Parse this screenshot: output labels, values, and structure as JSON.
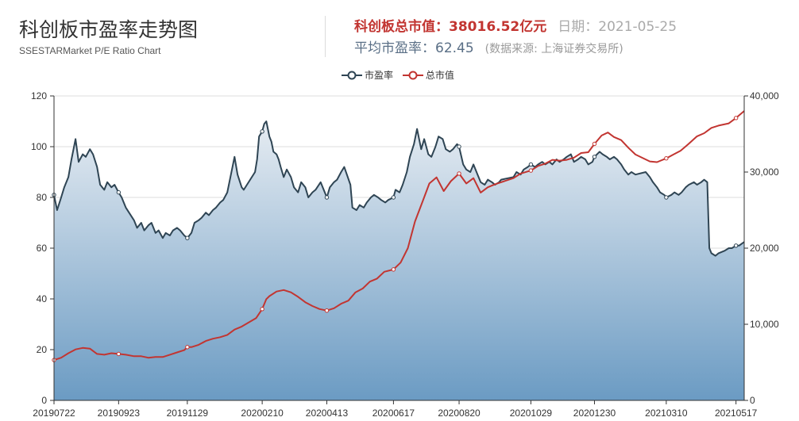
{
  "header": {
    "title": "科创板市盈率走势图",
    "subtitle": "SSESTARMarket P/E Ratio Chart",
    "market_cap_label": "科创板总市值：",
    "market_cap_value": "38016.52亿元",
    "date_label": "日期：",
    "date_value": "2021-05-25",
    "avg_pe_label": "平均市盈率：",
    "avg_pe_value": "62.45",
    "source": "(数据来源: 上海证券交易所)"
  },
  "colors": {
    "pe": "#2f4554",
    "mcap": "#c23531",
    "area_top": "#e6ecf2",
    "area_bottom": "#6b9bc3"
  },
  "chart_data": {
    "type": "line",
    "x_ticks": [
      "20190722",
      "20190923",
      "20191129",
      "20200210",
      "20200413",
      "20200617",
      "20200820",
      "20201029",
      "20201230",
      "20210310",
      "20210517"
    ],
    "x_range": [
      "20190722",
      "20210525"
    ],
    "y_left": {
      "min": 0,
      "max": 120,
      "ticks": [
        "0",
        "20",
        "40",
        "60",
        "80",
        "100",
        "120"
      ]
    },
    "y_right": {
      "min": 0,
      "max": 40000,
      "ticks": [
        "0",
        "10,000",
        "20,000",
        "30,000",
        "40,000"
      ]
    },
    "grid": true,
    "legend_position": "top-center",
    "series": [
      {
        "name": "市盈率",
        "axis": "left",
        "style": "area-line",
        "points": [
          [
            "20190722",
            81
          ],
          [
            "20190725",
            75
          ],
          [
            "20190729",
            80
          ],
          [
            "20190801",
            84
          ],
          [
            "20190805",
            88
          ],
          [
            "20190808",
            95
          ],
          [
            "20190812",
            103
          ],
          [
            "20190815",
            94
          ],
          [
            "20190819",
            97
          ],
          [
            "20190822",
            96
          ],
          [
            "20190826",
            99
          ],
          [
            "20190829",
            97
          ],
          [
            "20190902",
            92
          ],
          [
            "20190905",
            85
          ],
          [
            "20190909",
            83
          ],
          [
            "20190912",
            86
          ],
          [
            "20190916",
            84
          ],
          [
            "20190919",
            85
          ],
          [
            "20190923",
            82
          ],
          [
            "20190926",
            80
          ],
          [
            "20190930",
            76
          ],
          [
            "20191008",
            71
          ],
          [
            "20191011",
            68
          ],
          [
            "20191015",
            70
          ],
          [
            "20191018",
            67
          ],
          [
            "20191022",
            69
          ],
          [
            "20191025",
            70
          ],
          [
            "20191029",
            66
          ],
          [
            "20191101",
            67
          ],
          [
            "20191105",
            64
          ],
          [
            "20191108",
            66
          ],
          [
            "20191112",
            65
          ],
          [
            "20191115",
            67
          ],
          [
            "20191119",
            68
          ],
          [
            "20191122",
            67
          ],
          [
            "20191126",
            65
          ],
          [
            "20191129",
            64
          ],
          [
            "20191203",
            66
          ],
          [
            "20191206",
            70
          ],
          [
            "20191210",
            71
          ],
          [
            "20191213",
            72
          ],
          [
            "20191217",
            74
          ],
          [
            "20191220",
            73
          ],
          [
            "20191224",
            75
          ],
          [
            "20191227",
            76
          ],
          [
            "20191231",
            78
          ],
          [
            "20200103",
            79
          ],
          [
            "20200107",
            82
          ],
          [
            "20200110",
            88
          ],
          [
            "20200114",
            96
          ],
          [
            "20200117",
            89
          ],
          [
            "20200121",
            84
          ],
          [
            "20200123",
            83
          ],
          [
            "20200203",
            90
          ],
          [
            "20200205",
            95
          ],
          [
            "20200207",
            104
          ],
          [
            "20200210",
            106
          ],
          [
            "20200212",
            109
          ],
          [
            "20200214",
            110
          ],
          [
            "20200217",
            104
          ],
          [
            "20200219",
            102
          ],
          [
            "20200221",
            98
          ],
          [
            "20200224",
            97
          ],
          [
            "20200226",
            95
          ],
          [
            "20200228",
            92
          ],
          [
            "20200302",
            88
          ],
          [
            "20200305",
            91
          ],
          [
            "20200309",
            88
          ],
          [
            "20200312",
            84
          ],
          [
            "20200316",
            82
          ],
          [
            "20200319",
            86
          ],
          [
            "20200323",
            84
          ],
          [
            "20200326",
            80
          ],
          [
            "20200330",
            82
          ],
          [
            "20200402",
            83
          ],
          [
            "20200407",
            86
          ],
          [
            "20200410",
            83
          ],
          [
            "20200413",
            80
          ],
          [
            "20200416",
            84
          ],
          [
            "20200420",
            86
          ],
          [
            "20200423",
            87
          ],
          [
            "20200427",
            90
          ],
          [
            "20200430",
            92
          ],
          [
            "20200506",
            85
          ],
          [
            "20200508",
            76
          ],
          [
            "20200512",
            75
          ],
          [
            "20200515",
            77
          ],
          [
            "20200519",
            76
          ],
          [
            "20200522",
            78
          ],
          [
            "20200526",
            80
          ],
          [
            "20200529",
            81
          ],
          [
            "20200602",
            80
          ],
          [
            "20200605",
            79
          ],
          [
            "20200609",
            78
          ],
          [
            "20200612",
            79
          ],
          [
            "20200617",
            80
          ],
          [
            "20200619",
            83
          ],
          [
            "20200623",
            82
          ],
          [
            "20200626",
            85
          ],
          [
            "20200630",
            90
          ],
          [
            "20200703",
            96
          ],
          [
            "20200707",
            101
          ],
          [
            "20200710",
            107
          ],
          [
            "20200714",
            99
          ],
          [
            "20200717",
            103
          ],
          [
            "20200721",
            97
          ],
          [
            "20200724",
            96
          ],
          [
            "20200728",
            100
          ],
          [
            "20200731",
            104
          ],
          [
            "20200804",
            103
          ],
          [
            "20200807",
            99
          ],
          [
            "20200811",
            98
          ],
          [
            "20200814",
            99
          ],
          [
            "20200818",
            101
          ],
          [
            "20200820",
            100
          ],
          [
            "20200824",
            93
          ],
          [
            "20200827",
            91
          ],
          [
            "20200831",
            90
          ],
          [
            "20200903",
            93
          ],
          [
            "20200907",
            89
          ],
          [
            "20200910",
            86
          ],
          [
            "20200914",
            85
          ],
          [
            "20200917",
            87
          ],
          [
            "20200921",
            86
          ],
          [
            "20200924",
            85
          ],
          [
            "20200928",
            86
          ],
          [
            "20200930",
            87
          ],
          [
            "20201012",
            88
          ],
          [
            "20201015",
            90
          ],
          [
            "20201019",
            89
          ],
          [
            "20201022",
            91
          ],
          [
            "20201026",
            92
          ],
          [
            "20201029",
            93
          ],
          [
            "20201102",
            92
          ],
          [
            "20201105",
            93
          ],
          [
            "20201109",
            94
          ],
          [
            "20201112",
            93
          ],
          [
            "20201116",
            94
          ],
          [
            "20201119",
            93
          ],
          [
            "20201123",
            95
          ],
          [
            "20201126",
            94
          ],
          [
            "20201130",
            95
          ],
          [
            "20201203",
            96
          ],
          [
            "20201207",
            97
          ],
          [
            "20201210",
            94
          ],
          [
            "20201214",
            95
          ],
          [
            "20201217",
            96
          ],
          [
            "20201221",
            95
          ],
          [
            "20201224",
            93
          ],
          [
            "20201228",
            94
          ],
          [
            "20201230",
            96
          ],
          [
            "20210104",
            98
          ],
          [
            "20210107",
            97
          ],
          [
            "20210111",
            96
          ],
          [
            "20210114",
            95
          ],
          [
            "20210118",
            96
          ],
          [
            "20210121",
            95
          ],
          [
            "20210125",
            93
          ],
          [
            "20210128",
            91
          ],
          [
            "20210201",
            89
          ],
          [
            "20210204",
            90
          ],
          [
            "20210208",
            89
          ],
          [
            "20210218",
            90
          ],
          [
            "20210222",
            88
          ],
          [
            "20210225",
            86
          ],
          [
            "20210301",
            84
          ],
          [
            "20210304",
            82
          ],
          [
            "20210308",
            81
          ],
          [
            "20210310",
            80
          ],
          [
            "20210315",
            81
          ],
          [
            "20210318",
            82
          ],
          [
            "20210322",
            81
          ],
          [
            "20210325",
            82
          ],
          [
            "20210329",
            84
          ],
          [
            "20210401",
            85
          ],
          [
            "20210406",
            86
          ],
          [
            "20210409",
            85
          ],
          [
            "20210413",
            86
          ],
          [
            "20210416",
            87
          ],
          [
            "20210419",
            86
          ],
          [
            "20210421",
            60
          ],
          [
            "20210423",
            58
          ],
          [
            "20210427",
            57
          ],
          [
            "20210430",
            58
          ],
          [
            "20210506",
            59
          ],
          [
            "20210510",
            60
          ],
          [
            "20210513",
            60
          ],
          [
            "20210517",
            61
          ],
          [
            "20210520",
            61
          ],
          [
            "20210525",
            62.45
          ]
        ]
      },
      {
        "name": "总市值",
        "axis": "right",
        "style": "line",
        "points": [
          [
            "20190722",
            5300
          ],
          [
            "20190729",
            5600
          ],
          [
            "20190805",
            6200
          ],
          [
            "20190812",
            6700
          ],
          [
            "20190819",
            6900
          ],
          [
            "20190826",
            6800
          ],
          [
            "20190902",
            6100
          ],
          [
            "20190909",
            6000
          ],
          [
            "20190916",
            6200
          ],
          [
            "20190923",
            6100
          ],
          [
            "20190930",
            6000
          ],
          [
            "20191008",
            5800
          ],
          [
            "20191015",
            5800
          ],
          [
            "20191022",
            5600
          ],
          [
            "20191029",
            5700
          ],
          [
            "20191105",
            5700
          ],
          [
            "20191112",
            6000
          ],
          [
            "20191119",
            6300
          ],
          [
            "20191126",
            6600
          ],
          [
            "20191129",
            7000
          ],
          [
            "20191203",
            7000
          ],
          [
            "20191210",
            7300
          ],
          [
            "20191217",
            7800
          ],
          [
            "20191224",
            8100
          ],
          [
            "20191231",
            8300
          ],
          [
            "20200107",
            8600
          ],
          [
            "20200114",
            9300
          ],
          [
            "20200121",
            9700
          ],
          [
            "20200204",
            10800
          ],
          [
            "20200210",
            12000
          ],
          [
            "20200214",
            13300
          ],
          [
            "20200217",
            13700
          ],
          [
            "20200224",
            14300
          ],
          [
            "20200302",
            14500
          ],
          [
            "20200309",
            14200
          ],
          [
            "20200316",
            13600
          ],
          [
            "20200323",
            12900
          ],
          [
            "20200330",
            12400
          ],
          [
            "20200406",
            12000
          ],
          [
            "20200413",
            11800
          ],
          [
            "20200420",
            12100
          ],
          [
            "20200427",
            12700
          ],
          [
            "20200504",
            13100
          ],
          [
            "20200511",
            14200
          ],
          [
            "20200518",
            14700
          ],
          [
            "20200525",
            15600
          ],
          [
            "20200601",
            16000
          ],
          [
            "20200608",
            16900
          ],
          [
            "20200617",
            17200
          ],
          [
            "20200624",
            18100
          ],
          [
            "20200701",
            20000
          ],
          [
            "20200708",
            23500
          ],
          [
            "20200715",
            26000
          ],
          [
            "20200722",
            28500
          ],
          [
            "20200729",
            29300
          ],
          [
            "20200805",
            27500
          ],
          [
            "20200812",
            28800
          ],
          [
            "20200820",
            29800
          ],
          [
            "20200827",
            28500
          ],
          [
            "20200903",
            29200
          ],
          [
            "20200910",
            27300
          ],
          [
            "20200917",
            28000
          ],
          [
            "20200924",
            28400
          ],
          [
            "20201012",
            29200
          ],
          [
            "20201019",
            29800
          ],
          [
            "20201029",
            30200
          ],
          [
            "20201105",
            30800
          ],
          [
            "20201112",
            31100
          ],
          [
            "20201119",
            31600
          ],
          [
            "20201126",
            31500
          ],
          [
            "20201203",
            31600
          ],
          [
            "20201210",
            31900
          ],
          [
            "20201217",
            32500
          ],
          [
            "20201224",
            32600
          ],
          [
            "20201230",
            33700
          ],
          [
            "20210106",
            34800
          ],
          [
            "20210112",
            35200
          ],
          [
            "20210118",
            34600
          ],
          [
            "20210125",
            34200
          ],
          [
            "20210201",
            33200
          ],
          [
            "20210208",
            32300
          ],
          [
            "20210222",
            31400
          ],
          [
            "20210301",
            31300
          ],
          [
            "20210310",
            31800
          ],
          [
            "20210317",
            32300
          ],
          [
            "20210324",
            32800
          ],
          [
            "20210331",
            33600
          ],
          [
            "20210409",
            34700
          ],
          [
            "20210416",
            35100
          ],
          [
            "20210423",
            35800
          ],
          [
            "20210430",
            36100
          ],
          [
            "20210510",
            36400
          ],
          [
            "20210517",
            37100
          ],
          [
            "20210525",
            38016.52
          ]
        ]
      }
    ]
  }
}
